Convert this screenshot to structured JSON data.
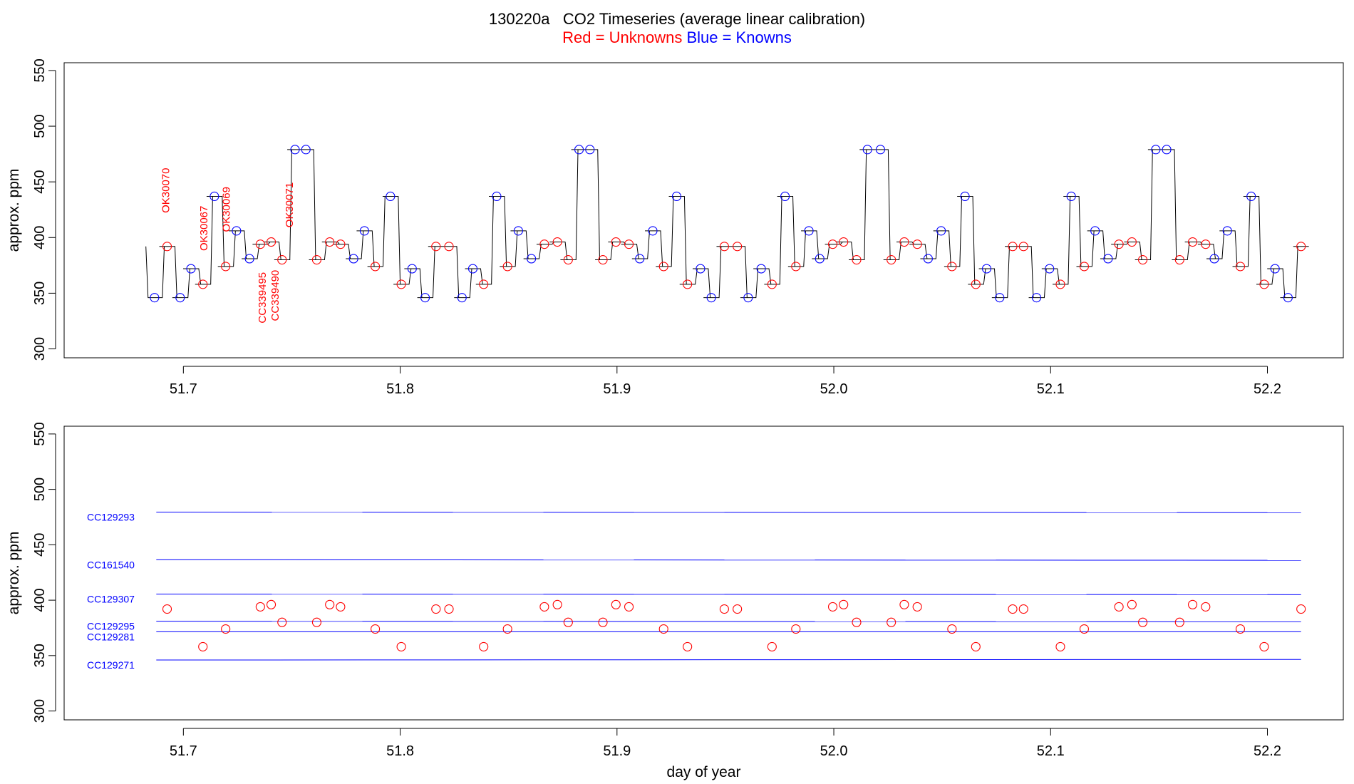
{
  "title": {
    "main": "130220a   CO2 Timeseries (average linear calibration)",
    "legend_red": "Red = Unknowns",
    "legend_blue": "Blue = Knowns",
    "red_color": "#ff0000",
    "blue_color": "#0000ff"
  },
  "chart_data": [
    {
      "type": "line",
      "panel": "top",
      "title": "130220a   CO2 Timeseries (average linear calibration)",
      "xlabel": "",
      "ylabel": "approx. ppm",
      "xlim": [
        51.645,
        52.235
      ],
      "ylim": [
        292,
        557
      ],
      "xticks": [
        "51.7",
        "51.8",
        "51.9",
        "52.0",
        "52.1",
        "52.2"
      ],
      "yticks": [
        "300",
        "350",
        "400",
        "450",
        "500",
        "550"
      ],
      "grid": false,
      "legend": "title area",
      "trace_color": "#000000",
      "knowns_color": "#0000ff",
      "unknowns_color": "#ff0000",
      "series": [
        {
          "name": "Knowns",
          "color": "#0000ff",
          "x": [
            51.6867,
            51.6985,
            51.7035,
            51.7143,
            51.7245,
            51.7305,
            51.7515,
            51.7565,
            51.7785,
            51.7835,
            51.7955,
            51.8055,
            51.8115,
            51.8285,
            51.8335,
            51.8445,
            51.8545,
            51.8605,
            51.8825,
            51.8875,
            51.9105,
            51.9165,
            51.9275,
            51.9385,
            51.9435,
            51.9605,
            51.9665,
            51.9775,
            51.9885,
            51.9935,
            52.0155,
            52.0215,
            52.0435,
            52.0495,
            52.0605,
            52.0705,
            52.0765,
            52.0935,
            52.0995,
            52.1095,
            52.1205,
            52.1265,
            52.1485,
            52.1535,
            52.1755,
            52.1815,
            52.1925,
            52.2035,
            52.2095
          ],
          "y": [
            346,
            346,
            372,
            437,
            406,
            381,
            479,
            479,
            381,
            406,
            437,
            372,
            346,
            346,
            372,
            437,
            406,
            381,
            479,
            479,
            381,
            406,
            437,
            372,
            346,
            346,
            372,
            437,
            406,
            381,
            479,
            479,
            381,
            406,
            437,
            372,
            346,
            346,
            372,
            437,
            406,
            381,
            479,
            479,
            381,
            406,
            437,
            372,
            346
          ]
        },
        {
          "name": "Unknowns",
          "color": "#ff0000",
          "x": [
            51.6925,
            51.709,
            51.7195,
            51.7355,
            51.7405,
            51.7455,
            51.7615,
            51.7675,
            51.7725,
            51.7885,
            51.8005,
            51.8165,
            51.8225,
            51.8385,
            51.8495,
            51.8665,
            51.8725,
            51.8775,
            51.8935,
            51.8995,
            51.9055,
            51.9215,
            51.9325,
            51.9495,
            51.9555,
            51.9715,
            51.9825,
            51.9995,
            52.0045,
            52.0105,
            52.0265,
            52.0325,
            52.0385,
            52.0545,
            52.0655,
            52.0825,
            52.0875,
            52.1045,
            52.1155,
            52.1315,
            52.1375,
            52.1425,
            52.1595,
            52.1655,
            52.1715,
            52.1875,
            52.1985,
            52.2155
          ],
          "y": [
            392,
            358,
            374,
            394,
            396,
            380,
            380,
            396,
            394,
            374,
            358,
            392,
            392,
            358,
            374,
            394,
            396,
            380,
            380,
            396,
            394,
            374,
            358,
            392,
            392,
            358,
            374,
            394,
            396,
            380,
            380,
            396,
            394,
            374,
            358,
            392,
            392,
            358,
            374,
            394,
            396,
            380,
            380,
            396,
            394,
            374,
            358,
            392
          ]
        }
      ],
      "annotations": [
        {
          "text": "OK30070",
          "x": 51.6935,
          "y": 422,
          "color": "#ff0000"
        },
        {
          "text": "OK30067",
          "x": 51.711,
          "y": 388,
          "color": "#ff0000"
        },
        {
          "text": "OK30069",
          "x": 51.7215,
          "y": 405,
          "color": "#ff0000"
        },
        {
          "text": "CC339495",
          "x": 51.738,
          "y": 323,
          "color": "#ff0000"
        },
        {
          "text": "CC339490",
          "x": 51.744,
          "y": 325,
          "color": "#ff0000"
        },
        {
          "text": "OK30071",
          "x": 51.7505,
          "y": 409,
          "color": "#ff0000"
        }
      ]
    },
    {
      "type": "scatter",
      "panel": "bottom",
      "xlabel": "day of year",
      "ylabel": "approx. ppm",
      "xlim": [
        51.645,
        52.235
      ],
      "ylim": [
        292,
        557
      ],
      "xticks": [
        "51.7",
        "51.8",
        "51.9",
        "52.0",
        "52.1",
        "52.2"
      ],
      "yticks": [
        "300",
        "350",
        "400",
        "450",
        "500",
        "550"
      ],
      "grid": false,
      "reference_lines": [
        {
          "name": "CC129293",
          "x": [
            51.6875,
            52.2155
          ],
          "y": [
            479.5,
            479.0
          ],
          "color": "#0000ff"
        },
        {
          "name": "CC161540",
          "x": [
            51.6875,
            52.2155
          ],
          "y": [
            436.5,
            436.0
          ],
          "color": "#0000ff"
        },
        {
          "name": "CC129307",
          "x": [
            51.6875,
            52.2155
          ],
          "y": [
            405.5,
            405.0
          ],
          "color": "#0000ff"
        },
        {
          "name": "CC129295",
          "x": [
            51.6875,
            52.2155
          ],
          "y": [
            381.0,
            380.5
          ],
          "color": "#0000ff"
        },
        {
          "name": "CC129281",
          "x": [
            51.6875,
            52.2155
          ],
          "y": [
            371.5,
            371.5
          ],
          "color": "#0000ff"
        },
        {
          "name": "CC129271",
          "x": [
            51.6875,
            52.2155
          ],
          "y": [
            346.0,
            346.5
          ],
          "color": "#0000ff"
        }
      ],
      "series": [
        {
          "name": "Unknowns",
          "color": "#ff0000",
          "x": [
            51.6925,
            51.709,
            51.7195,
            51.7355,
            51.7405,
            51.7455,
            51.7615,
            51.7675,
            51.7725,
            51.7885,
            51.8005,
            51.8165,
            51.8225,
            51.8385,
            51.8495,
            51.8665,
            51.8725,
            51.8775,
            51.8935,
            51.8995,
            51.9055,
            51.9215,
            51.9325,
            51.9495,
            51.9555,
            51.9715,
            51.9825,
            51.9995,
            52.0045,
            52.0105,
            52.0265,
            52.0325,
            52.0385,
            52.0545,
            52.0655,
            52.0825,
            52.0875,
            52.1045,
            52.1155,
            52.1315,
            52.1375,
            52.1425,
            52.1595,
            52.1655,
            52.1715,
            52.1875,
            52.1985,
            52.2155
          ],
          "y": [
            392,
            358,
            374,
            394,
            396,
            380,
            380,
            396,
            394,
            374,
            358,
            392,
            392,
            358,
            374,
            394,
            396,
            380,
            380,
            396,
            394,
            374,
            358,
            392,
            392,
            358,
            374,
            394,
            396,
            380,
            380,
            396,
            394,
            374,
            358,
            392,
            392,
            358,
            374,
            394,
            396,
            380,
            380,
            396,
            394,
            374,
            358,
            392
          ]
        }
      ]
    }
  ]
}
